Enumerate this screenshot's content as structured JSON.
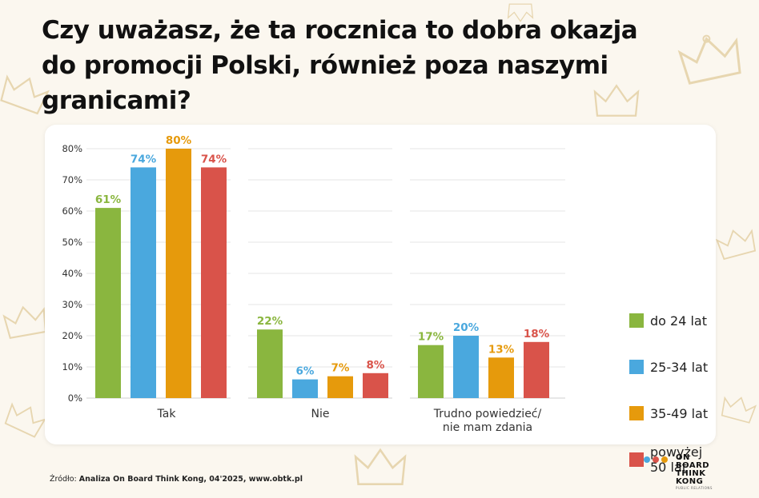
{
  "title": {
    "line1": "Czy uważasz, że ta rocznica to dobra okazja",
    "line2": "do promocji Polski, również poza naszymi",
    "line3": "granicami?"
  },
  "colors": {
    "background": "#fbf7ef",
    "do_24": "#8ab63f",
    "25_34": "#4aa8de",
    "35_49": "#e69a0c",
    "powyzej_50": "#d9534a",
    "crown": "#e7d6b0"
  },
  "chart_data": {
    "type": "bar",
    "categories": [
      "Tak",
      "Nie",
      "Trudno powiedzieć/ nie mam zdania"
    ],
    "category_lines": [
      [
        "Tak"
      ],
      [
        "Nie"
      ],
      [
        "Trudno powiedzieć/",
        "nie mam zdania"
      ]
    ],
    "series": [
      {
        "name": "do 24 lat",
        "color": "#8ab63f",
        "values": [
          61,
          22,
          17
        ]
      },
      {
        "name": "25-34 lat",
        "color": "#4aa8de",
        "values": [
          74,
          6,
          20
        ]
      },
      {
        "name": "35-49 lat",
        "color": "#e69a0c",
        "values": [
          80,
          7,
          13
        ]
      },
      {
        "name": "powyżej 50 lat",
        "color": "#d9534a",
        "values": [
          74,
          8,
          18
        ]
      }
    ],
    "value_suffix": "%",
    "ylim": [
      0,
      80
    ],
    "yticks": [
      "0%",
      "10%",
      "20%",
      "30%",
      "40%",
      "50%",
      "60%",
      "70%",
      "80%"
    ],
    "grid": true,
    "legend_position": "right"
  },
  "legend": [
    {
      "label": "do 24 lat",
      "color": "#8ab63f"
    },
    {
      "label": "25-34 lat",
      "color": "#4aa8de"
    },
    {
      "label": "35-49 lat",
      "color": "#e69a0c"
    },
    {
      "label": "powyżej 50 lat",
      "color": "#d9534a"
    }
  ],
  "source": {
    "prefix": "Źródło:",
    "text": "Analiza On Board Think Kong, 04'2025, www.obtk.pl"
  },
  "logo": {
    "lines": [
      "ON",
      "BOARD",
      "THINK",
      "KONG"
    ],
    "tagline": "PUBLIC RELATIONS",
    "dot_colors": [
      "#4aa8de",
      "#d9534a",
      "#e69a0c"
    ]
  }
}
